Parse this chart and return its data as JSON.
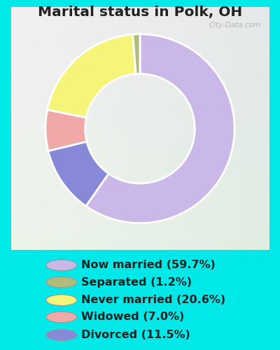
{
  "title": "Marital status in Polk, OH",
  "slices": [
    59.7,
    1.2,
    20.6,
    7.0,
    11.5
  ],
  "labels": [
    "Now married (59.7%)",
    "Separated (1.2%)",
    "Never married (20.6%)",
    "Widowed (7.0%)",
    "Divorced (11.5%)"
  ],
  "colors": [
    "#c9b8e8",
    "#b0bc7a",
    "#f5f57a",
    "#f0a8a8",
    "#8888d8"
  ],
  "bg_outer": "#00e8e8",
  "bg_inner_tl": "#e8f5e8",
  "bg_inner_br": "#d8eedd",
  "title_color": "#222222",
  "title_fontsize": 14.5,
  "legend_fontsize": 11.5,
  "watermark": "City-Data.com",
  "slice_order": [
    0,
    3,
    2,
    1,
    4
  ],
  "donut_width": 0.42
}
